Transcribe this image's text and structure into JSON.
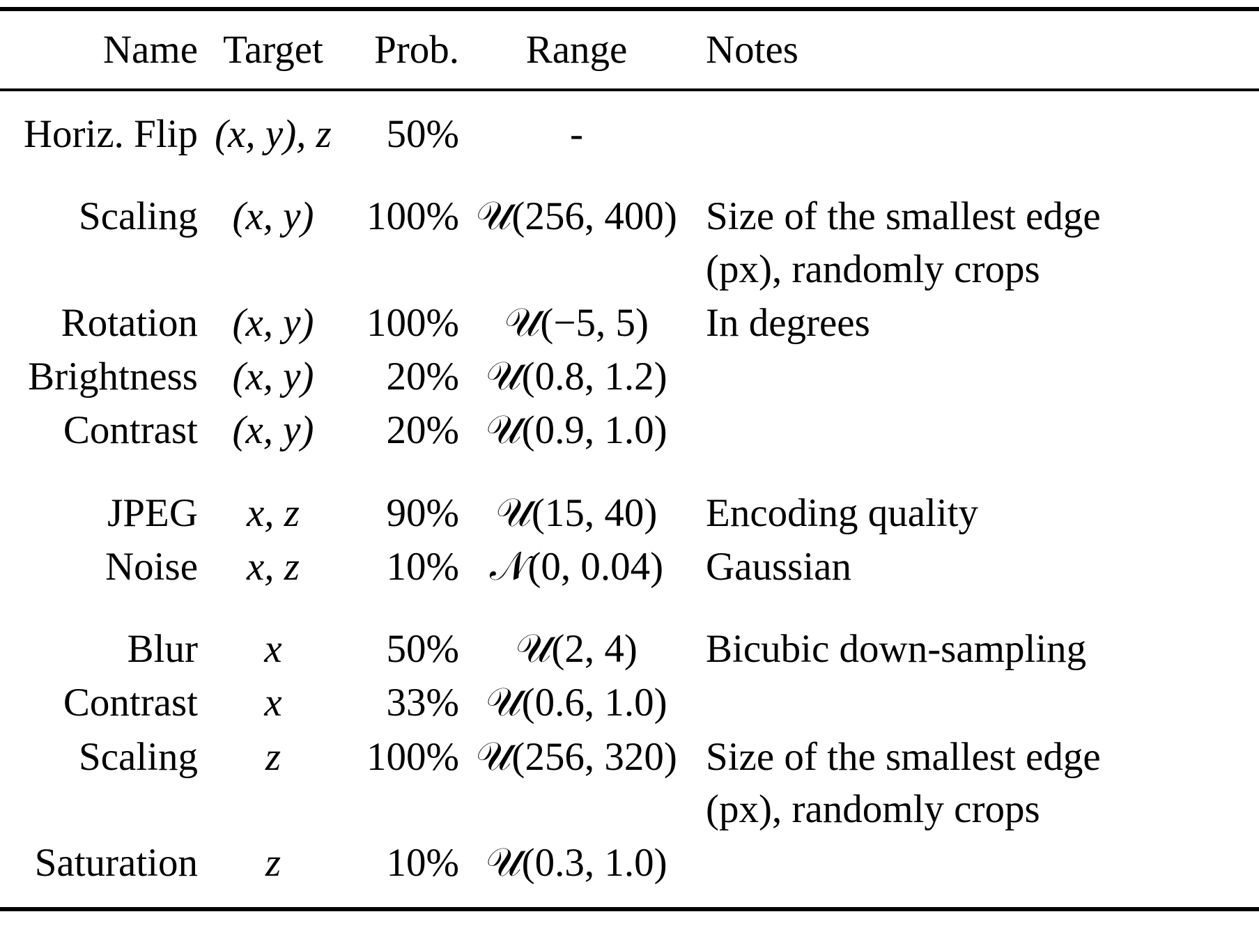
{
  "table": {
    "headers": {
      "name": "Name",
      "target": "Target",
      "prob": "Prob.",
      "range": "Range",
      "notes": "Notes"
    },
    "rows": [
      {
        "name": "Horiz. Flip",
        "target": "(x, y), z",
        "prob": "50%",
        "range_dist": "",
        "range_args": "-",
        "notes": ""
      },
      {
        "name": "Scaling",
        "target": "(x, y)",
        "prob": "100%",
        "range_dist": "𝒰",
        "range_args": "(256, 400)",
        "notes": "Size of the smallest edge\n(px), randomly crops"
      },
      {
        "name": "Rotation",
        "target": "(x, y)",
        "prob": "100%",
        "range_dist": "𝒰",
        "range_args": "(−5, 5)",
        "notes": "In degrees"
      },
      {
        "name": "Brightness",
        "target": "(x, y)",
        "prob": "20%",
        "range_dist": "𝒰",
        "range_args": "(0.8, 1.2)",
        "notes": ""
      },
      {
        "name": "Contrast",
        "target": "(x, y)",
        "prob": "20%",
        "range_dist": "𝒰",
        "range_args": "(0.9, 1.0)",
        "notes": ""
      },
      {
        "name": "JPEG",
        "target": "x, z",
        "prob": "90%",
        "range_dist": "𝒰",
        "range_args": "(15, 40)",
        "notes": "Encoding quality"
      },
      {
        "name": "Noise",
        "target": "x, z",
        "prob": "10%",
        "range_dist": "𝒩",
        "range_args": "(0, 0.04)",
        "notes": "Gaussian"
      },
      {
        "name": "Blur",
        "target": "x",
        "prob": "50%",
        "range_dist": "𝒰",
        "range_args": "(2, 4)",
        "notes": "Bicubic down-sampling"
      },
      {
        "name": "Contrast",
        "target": "x",
        "prob": "33%",
        "range_dist": "𝒰",
        "range_args": "(0.6, 1.0)",
        "notes": ""
      },
      {
        "name": "Scaling",
        "target": "z",
        "prob": "100%",
        "range_dist": "𝒰",
        "range_args": "(256, 320)",
        "notes": "Size of the smallest edge\n(px), randomly crops"
      },
      {
        "name": "Saturation",
        "target": "z",
        "prob": "10%",
        "range_dist": "𝒰",
        "range_args": "(0.3, 1.0)",
        "notes": ""
      }
    ]
  }
}
